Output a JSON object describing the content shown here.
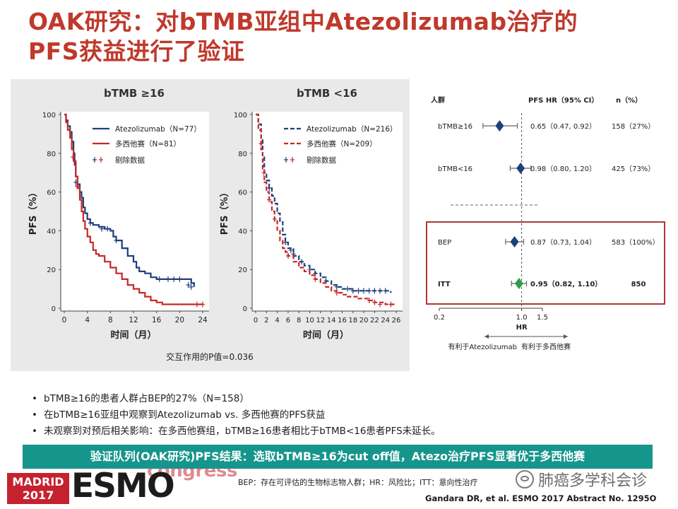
{
  "slide": {
    "title_line1": "OAK研究：对bTMB亚组中Atezolizumab治疗的",
    "title_line2": "PFS获益进行了验证",
    "interaction_p": "交互作用的P值=0.036",
    "bullets": [
      "bTMB≥16的患者人群占BEP的27%（N=158）",
      "在bTMB≥16亚组中观察到Atezolizumab vs. 多西他赛的PFS获益",
      "未观察到对预后相关影响：在多西他赛组，bTMB≥16患者相比于bTMB<16患者PFS未延长。"
    ],
    "banner": "验证队列(OAK研究)PFS结果：选取bTMB≥16为cut off值，Atezo治疗PFS显著优于多西他赛",
    "footnote": "BEP：存在可评估的生物标志物人群；HR：风险比；ITT：意向性治疗",
    "citation": "Gandara DR, et al. ESMO 2017 Abstract No. 1295O",
    "logo": {
      "congress": "congress",
      "madrid": "MADRID",
      "year": "2017",
      "esmo": "ESMO"
    },
    "watermark": "肺癌多学科会诊"
  },
  "colors": {
    "title": "#c0392b",
    "atezo": "#1f3f7a",
    "docetaxel": "#c62828",
    "banner": "#16958c",
    "itt": "#2e9e4a",
    "box": "#a93a3a"
  },
  "chart_data": [
    {
      "type": "line",
      "subtype": "kaplan-meier",
      "title": "bTMB ≥16",
      "xlabel": "时间（月）",
      "ylabel": "PFS（%）",
      "xlim": [
        0,
        24
      ],
      "ylim": [
        0,
        100
      ],
      "xticks": [
        0,
        4,
        8,
        12,
        16,
        20,
        24
      ],
      "yticks": [
        0,
        20,
        40,
        60,
        80,
        100
      ],
      "censor_label": "剔除数据",
      "series": [
        {
          "name": "Atezolizumab（N=77）",
          "style": "solid",
          "color": "#1f3f7a",
          "points": [
            [
              0,
              100
            ],
            [
              0.3,
              97
            ],
            [
              0.6,
              94
            ],
            [
              1,
              91
            ],
            [
              1.3,
              86
            ],
            [
              1.6,
              80
            ],
            [
              1.8,
              74
            ],
            [
              2,
              68
            ],
            [
              2.3,
              64
            ],
            [
              2.7,
              60
            ],
            [
              3,
              57
            ],
            [
              3.3,
              52
            ],
            [
              3.6,
              49
            ],
            [
              4,
              46
            ],
            [
              4.5,
              44
            ],
            [
              5,
              43
            ],
            [
              6,
              42
            ],
            [
              7,
              41
            ],
            [
              8,
              40
            ],
            [
              8.5,
              37
            ],
            [
              9,
              35
            ],
            [
              10,
              31
            ],
            [
              11,
              27
            ],
            [
              12,
              24
            ],
            [
              12.5,
              21
            ],
            [
              13,
              19
            ],
            [
              14,
              18
            ],
            [
              15,
              16
            ],
            [
              16,
              15
            ],
            [
              17,
              15
            ],
            [
              18,
              15
            ],
            [
              19,
              15
            ],
            [
              21,
              15
            ],
            [
              22,
              13
            ],
            [
              22.5,
              11
            ]
          ],
          "censored": [
            [
              2,
              65
            ],
            [
              4.5,
              44
            ],
            [
              6.5,
              41
            ],
            [
              7.5,
              41
            ],
            [
              9,
              35
            ],
            [
              16.5,
              15
            ],
            [
              18,
              15
            ],
            [
              19,
              15
            ],
            [
              20,
              15
            ],
            [
              21.5,
              12
            ],
            [
              22,
              11
            ]
          ]
        },
        {
          "name": "多西他赛（N=81）",
          "style": "solid",
          "color": "#c62828",
          "points": [
            [
              0,
              100
            ],
            [
              0.3,
              96
            ],
            [
              0.6,
              92
            ],
            [
              1,
              88
            ],
            [
              1.3,
              82
            ],
            [
              1.6,
              76
            ],
            [
              2,
              68
            ],
            [
              2.3,
              62
            ],
            [
              2.7,
              56
            ],
            [
              3,
              50
            ],
            [
              3.3,
              45
            ],
            [
              3.6,
              41
            ],
            [
              4,
              37
            ],
            [
              4.5,
              34
            ],
            [
              5,
              30
            ],
            [
              5.5,
              28
            ],
            [
              6,
              27
            ],
            [
              7,
              24
            ],
            [
              8,
              21
            ],
            [
              9,
              18
            ],
            [
              10,
              15
            ],
            [
              11,
              12
            ],
            [
              12,
              10
            ],
            [
              13,
              8
            ],
            [
              14,
              6
            ],
            [
              15,
              4
            ],
            [
              16,
              3
            ],
            [
              17,
              2
            ],
            [
              18,
              2
            ],
            [
              20,
              2
            ],
            [
              24,
              2
            ]
          ],
          "censored": [
            [
              1.5,
              78
            ],
            [
              2.2,
              63
            ],
            [
              23,
              2
            ],
            [
              24,
              2
            ]
          ]
        }
      ]
    },
    {
      "type": "line",
      "subtype": "kaplan-meier",
      "title": "bTMB <16",
      "xlabel": "时间（月）",
      "ylabel": "PFS（%）",
      "xlim": [
        0,
        26
      ],
      "ylim": [
        0,
        100
      ],
      "xticks": [
        0,
        2,
        4,
        6,
        8,
        10,
        12,
        14,
        16,
        18,
        20,
        22,
        24,
        26
      ],
      "yticks": [
        0,
        20,
        40,
        60,
        80,
        100
      ],
      "censor_label": "剔除数据",
      "series": [
        {
          "name": "Atezolizumab（N=216）",
          "style": "dashed",
          "color": "#1f3f7a",
          "points": [
            [
              0,
              100
            ],
            [
              0.5,
              95
            ],
            [
              1,
              88
            ],
            [
              1.3,
              78
            ],
            [
              1.6,
              70
            ],
            [
              2,
              66
            ],
            [
              2.5,
              62
            ],
            [
              3,
              58
            ],
            [
              3.5,
              54
            ],
            [
              4,
              49
            ],
            [
              4.5,
              45
            ],
            [
              5,
              38
            ],
            [
              5.5,
              34
            ],
            [
              6,
              31
            ],
            [
              7,
              27
            ],
            [
              8,
              24
            ],
            [
              9,
              22
            ],
            [
              10,
              20
            ],
            [
              11,
              18
            ],
            [
              12,
              16
            ],
            [
              13,
              14
            ],
            [
              14,
              12
            ],
            [
              15,
              11
            ],
            [
              16,
              10
            ],
            [
              17,
              10
            ],
            [
              18,
              9
            ],
            [
              19,
              9
            ],
            [
              20,
              9
            ],
            [
              22,
              9
            ],
            [
              24,
              9
            ],
            [
              25,
              8
            ]
          ],
          "censored": [
            [
              2.5,
              62
            ],
            [
              5.5,
              34
            ],
            [
              6.5,
              30
            ],
            [
              7,
              28
            ],
            [
              8.5,
              24
            ],
            [
              10,
              20
            ],
            [
              11,
              18
            ],
            [
              13,
              14
            ],
            [
              15,
              11
            ],
            [
              17,
              10
            ],
            [
              18,
              9
            ],
            [
              19,
              9
            ],
            [
              20,
              9
            ],
            [
              21,
              9
            ],
            [
              22,
              9
            ],
            [
              23,
              9
            ],
            [
              24,
              9
            ]
          ]
        },
        {
          "name": "多西他赛（N=209）",
          "style": "dashed",
          "color": "#c62828",
          "points": [
            [
              0,
              100
            ],
            [
              0.5,
              92
            ],
            [
              1,
              82
            ],
            [
              1.3,
              72
            ],
            [
              1.6,
              65
            ],
            [
              2,
              60
            ],
            [
              2.5,
              55
            ],
            [
              3,
              50
            ],
            [
              3.5,
              45
            ],
            [
              4,
              40
            ],
            [
              4.5,
              35
            ],
            [
              5,
              31
            ],
            [
              5.5,
              29
            ],
            [
              6,
              27
            ],
            [
              7,
              24
            ],
            [
              8,
              21
            ],
            [
              9,
              19
            ],
            [
              10,
              17
            ],
            [
              11,
              15
            ],
            [
              12,
              13
            ],
            [
              13,
              11
            ],
            [
              14,
              9
            ],
            [
              15,
              8
            ],
            [
              16,
              7
            ],
            [
              17,
              6
            ],
            [
              18,
              6
            ],
            [
              19,
              5
            ],
            [
              20,
              5
            ],
            [
              21,
              4
            ],
            [
              22,
              3
            ],
            [
              24,
              2
            ],
            [
              26,
              2
            ]
          ],
          "censored": [
            [
              1,
              85
            ],
            [
              1.5,
              70
            ],
            [
              2.5,
              56
            ],
            [
              3.5,
              46
            ],
            [
              6,
              27
            ],
            [
              11,
              15
            ],
            [
              15,
              8
            ],
            [
              21,
              4
            ],
            [
              22,
              3
            ],
            [
              23,
              2
            ],
            [
              25,
              2
            ]
          ]
        }
      ]
    },
    {
      "type": "forest",
      "xlabel": "HR",
      "xscale": "log",
      "xticks": [
        0.2,
        1.0,
        1.5
      ],
      "reference_line": 1.0,
      "headers": {
        "group": "人群",
        "hr": "PFS HR（95% CI）",
        "n": "n（%）"
      },
      "favors_left": "有利于Atezolizumab",
      "favors_right": "有利于多西他赛",
      "rows": [
        {
          "label": "bTMB≥16",
          "hr": 0.65,
          "lo": 0.47,
          "hi": 0.92,
          "hr_text": "0.65（0.47, 0.92）",
          "n_text": "158（27%）",
          "color": "#1f3f7a",
          "bold": false
        },
        {
          "label": "bTMB<16",
          "hr": 0.98,
          "lo": 0.8,
          "hi": 1.2,
          "hr_text": "0.98（0.80, 1.20）",
          "n_text": "425（73%）",
          "color": "#1f3f7a",
          "bold": false
        },
        {
          "label": "BEP",
          "hr": 0.87,
          "lo": 0.73,
          "hi": 1.04,
          "hr_text": "0.87（0.73, 1.04）",
          "n_text": "583（100%）",
          "color": "#1f3f7a",
          "bold": false
        },
        {
          "label": "ITT",
          "hr": 0.95,
          "lo": 0.82,
          "hi": 1.1,
          "hr_text": "0.95（0.82, 1.10）",
          "n_text": "850",
          "color": "#2e9e4a",
          "bold": true
        }
      ]
    }
  ]
}
